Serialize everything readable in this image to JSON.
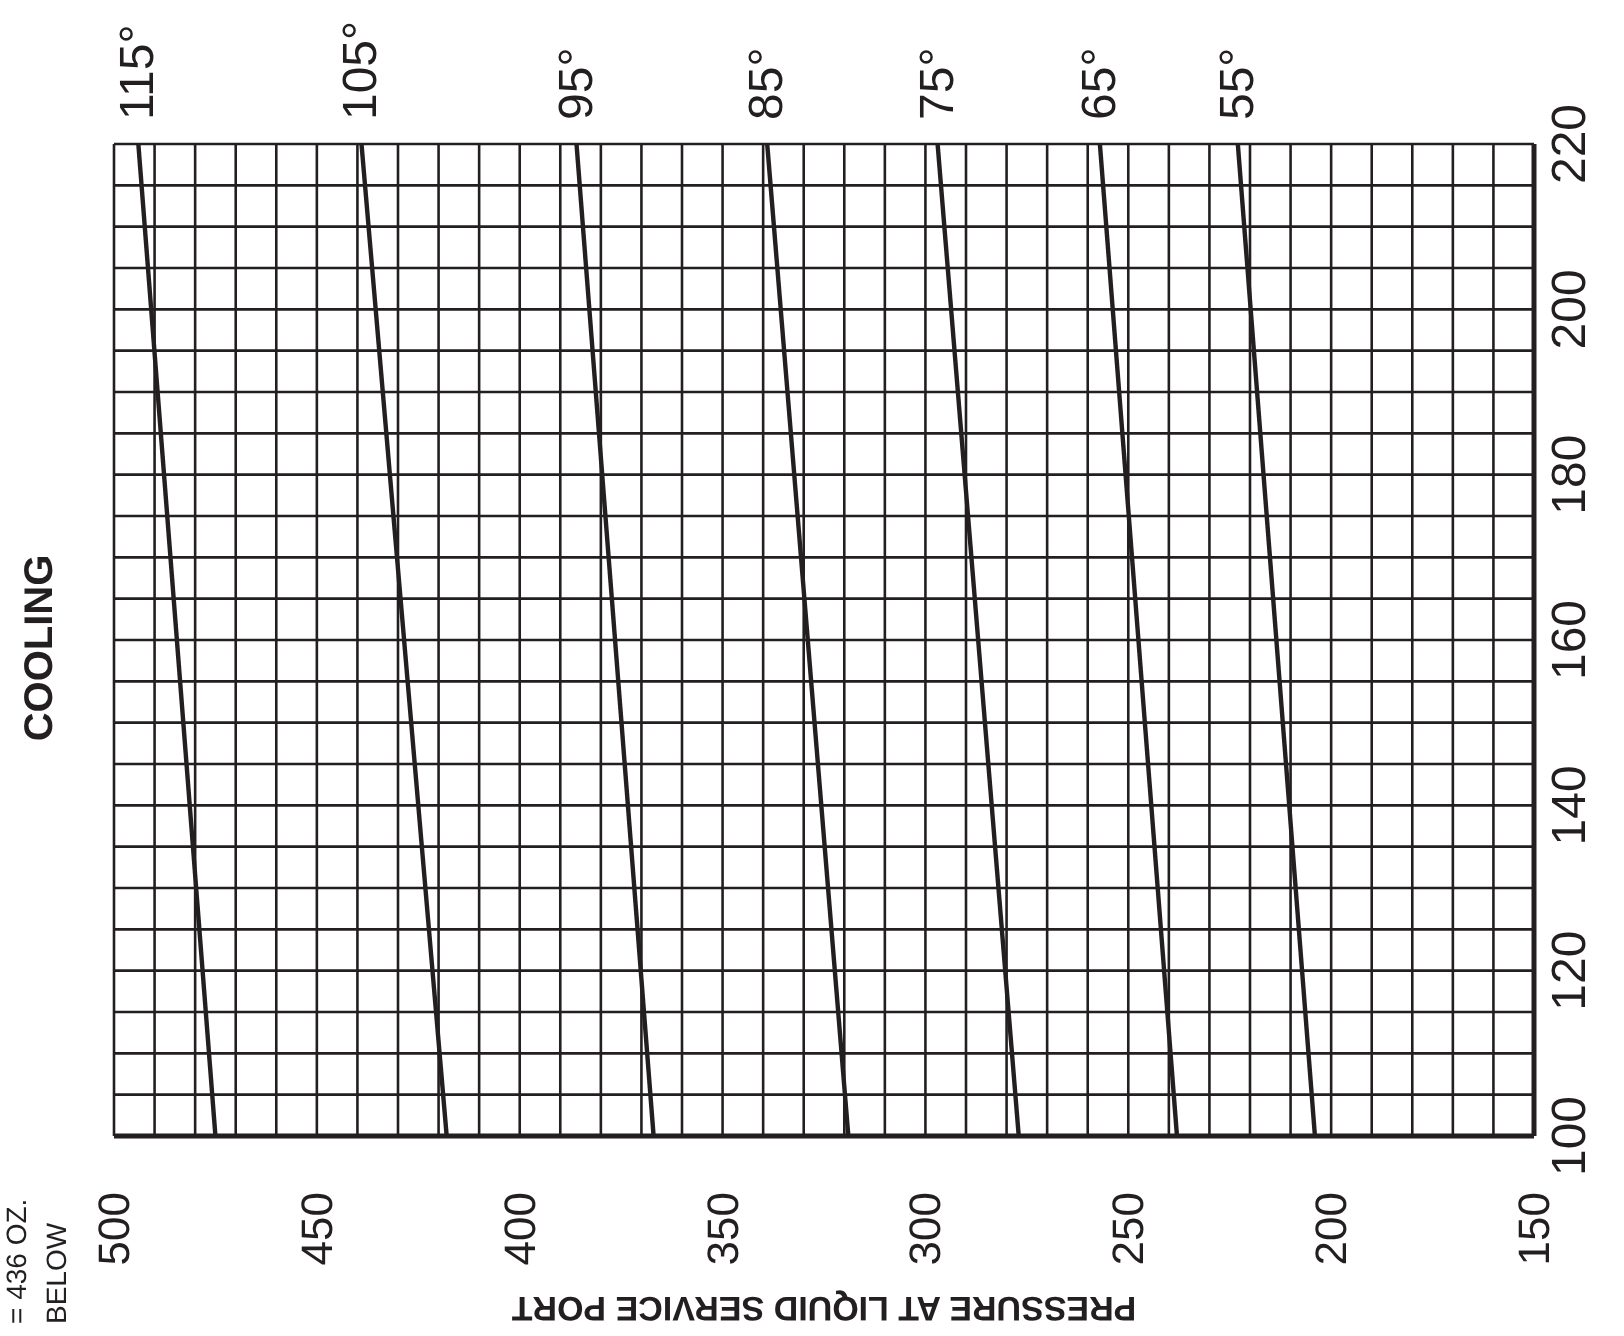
{
  "chart_data": {
    "type": "line",
    "title": "COOLING",
    "xlabel": "PRESSURE AT LIQUID SERVICE PORT",
    "annotations": [
      "= 436 OZ.",
      "BELOW"
    ],
    "series": [
      {
        "name": "115°",
        "color": "#231f20",
        "x": [
          475,
          494
        ],
        "values": [
          100,
          220
        ]
      },
      {
        "name": "105°",
        "color": "#231f20",
        "x": [
          418,
          439
        ],
        "values": [
          100,
          220
        ]
      },
      {
        "name": "95°",
        "color": "#231f20",
        "x": [
          367,
          386
        ],
        "values": [
          100,
          220
        ]
      },
      {
        "name": "85°",
        "color": "#231f20",
        "x": [
          319,
          339
        ],
        "values": [
          100,
          220
        ]
      },
      {
        "name": "75°",
        "color": "#231f20",
        "x": [
          277,
          297
        ],
        "values": [
          100,
          220
        ]
      },
      {
        "name": "65°",
        "color": "#231f20",
        "x": [
          238,
          257
        ],
        "values": [
          100,
          220
        ]
      },
      {
        "name": "55°",
        "color": "#231f20",
        "x": [
          204,
          223
        ],
        "values": [
          100,
          220
        ]
      }
    ],
    "xlim": [
      500,
      150
    ],
    "xticks": [
      500,
      {
        "value": 490,
        "label": null
      },
      {
        "value": 480,
        "label": null
      },
      {
        "value": 470,
        "label": null
      },
      {
        "value": 460,
        "label": null
      },
      450,
      {
        "value": 440,
        "label": null
      },
      {
        "value": 430,
        "label": null
      },
      {
        "value": 420,
        "label": null
      },
      {
        "value": 410,
        "label": null
      },
      400,
      {
        "value": 390,
        "label": null
      },
      {
        "value": 380,
        "label": null
      },
      {
        "value": 370,
        "label": null
      },
      {
        "value": 360,
        "label": null
      },
      350,
      {
        "value": 340,
        "label": null
      },
      {
        "value": 330,
        "label": null
      },
      {
        "value": 320,
        "label": null
      },
      {
        "value": 310,
        "label": null
      },
      300,
      {
        "value": 290,
        "label": null
      },
      {
        "value": 280,
        "label": null
      },
      {
        "value": 270,
        "label": null
      },
      {
        "value": 260,
        "label": null
      },
      250,
      {
        "value": 240,
        "label": null
      },
      {
        "value": 230,
        "label": null
      },
      {
        "value": 220,
        "label": null
      },
      {
        "value": 210,
        "label": null
      },
      200,
      {
        "value": 190,
        "label": null
      },
      {
        "value": 180,
        "label": null
      },
      {
        "value": 170,
        "label": null
      },
      {
        "value": 160,
        "label": null
      },
      150
    ],
    "ylim": [
      100,
      220
    ],
    "yticks": [
      100,
      {
        "value": 105,
        "label": null
      },
      {
        "value": 110,
        "label": null
      },
      {
        "value": 115,
        "label": null
      },
      120,
      {
        "value": 125,
        "label": null
      },
      {
        "value": 130,
        "label": null
      },
      {
        "value": 135,
        "label": null
      },
      140,
      {
        "value": 145,
        "label": null
      },
      {
        "value": 150,
        "label": null
      },
      {
        "value": 155,
        "label": null
      },
      160,
      {
        "value": 165,
        "label": null
      },
      {
        "value": 170,
        "label": null
      },
      {
        "value": 175,
        "label": null
      },
      180,
      {
        "value": 185,
        "label": null
      },
      {
        "value": 190,
        "label": null
      },
      {
        "value": 195,
        "label": null
      },
      200,
      {
        "value": 205,
        "label": null
      },
      {
        "value": 210,
        "label": null
      },
      {
        "value": 215,
        "label": null
      },
      220
    ],
    "grid": true,
    "marker": "none",
    "line_style": "solid"
  }
}
